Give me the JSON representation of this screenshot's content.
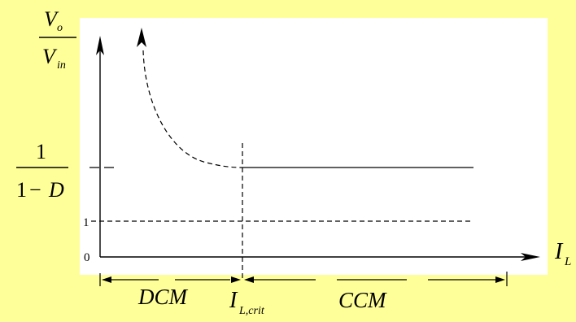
{
  "y_axis_label": {
    "numerator": "V",
    "numerator_sub": "o",
    "denominator": "V",
    "denominator_sub": "in"
  },
  "x_axis_label": {
    "main": "I",
    "sub": "L"
  },
  "level_label": {
    "numerator": "1",
    "denominator_left": "1",
    "minus": "−",
    "denominator_right": "D"
  },
  "tick_labels": {
    "one": "1",
    "zero": "0"
  },
  "regions": {
    "dcm": "DCM",
    "ccm": "CCM"
  },
  "critical_label": {
    "main": "I",
    "sub": "L,crit"
  },
  "colors": {
    "background": "#FFFF99",
    "plot_area": "#FFFFFF",
    "ink": "#000000"
  }
}
